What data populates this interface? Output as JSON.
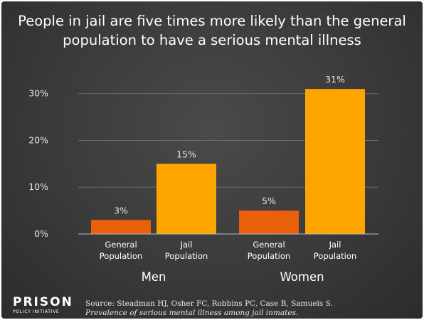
{
  "title_line1": "People in jail are five times more likely than the general",
  "title_line2": "population to have a serious mental illness",
  "logo": {
    "main": "PRISON",
    "sub": "POLICY INITIATIVE"
  },
  "source": {
    "line1": "Source: Steadman HJ, Osher FC, Robbins PC, Case B, Samuels S.",
    "line2": "Prevalence of serious mental illness among jail inmates."
  },
  "colors": {
    "general": "#e8600a",
    "jail": "#ffa500",
    "grid": "#6a6a6a",
    "baseline": "#bdbdbd"
  },
  "chart_data": {
    "type": "bar",
    "ylim": [
      0,
      33
    ],
    "yticks": [
      0,
      10,
      20,
      30
    ],
    "ytick_labels": [
      "0%",
      "10%",
      "20%",
      "30%"
    ],
    "groups": [
      {
        "name": "Men",
        "bars": [
          {
            "label_line1": "General",
            "label_line2": "Population",
            "value": 3,
            "value_label": "3%",
            "kind": "general"
          },
          {
            "label_line1": "Jail",
            "label_line2": "Population",
            "value": 15,
            "value_label": "15%",
            "kind": "jail"
          }
        ]
      },
      {
        "name": "Women",
        "bars": [
          {
            "label_line1": "General",
            "label_line2": "Population",
            "value": 5,
            "value_label": "5%",
            "kind": "general"
          },
          {
            "label_line1": "Jail",
            "label_line2": "Population",
            "value": 31,
            "value_label": "31%",
            "kind": "jail"
          }
        ]
      }
    ]
  }
}
